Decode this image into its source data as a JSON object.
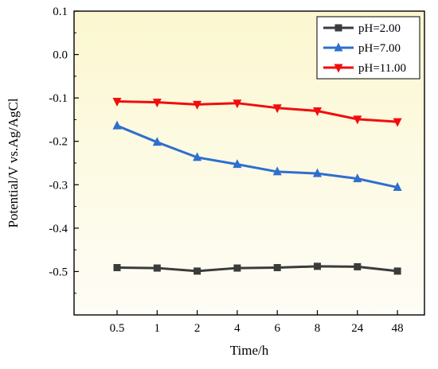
{
  "chart_data": {
    "type": "line",
    "title": "",
    "xlabel": "Time/h",
    "ylabel": "Potential/V vs.Ag/AgCl",
    "categories": [
      "0.5",
      "1",
      "2",
      "4",
      "6",
      "8",
      "24",
      "48"
    ],
    "ylim": [
      -0.6,
      0.1
    ],
    "yticks": [
      "0.1",
      "0.0",
      "-0.1",
      "-0.2",
      "-0.3",
      "-0.4",
      "-0.5"
    ],
    "yticks_values": [
      0.1,
      0.0,
      -0.1,
      -0.2,
      -0.3,
      -0.4,
      -0.5
    ],
    "grid": false,
    "legend_position": "top-right",
    "background": "gradient pale yellow",
    "series": [
      {
        "name": "pH=2.00",
        "color": "#3b3b3b",
        "marker": "square",
        "values": [
          -0.491,
          -0.492,
          -0.499,
          -0.492,
          -0.491,
          -0.488,
          -0.489,
          -0.499
        ]
      },
      {
        "name": "pH=7.00",
        "color": "#2f6fce",
        "marker": "triangle-up",
        "values": [
          -0.164,
          -0.202,
          -0.237,
          -0.253,
          -0.27,
          -0.274,
          -0.286,
          -0.306
        ]
      },
      {
        "name": "pH=11.00",
        "color": "#f20d0d",
        "marker": "triangle-down",
        "values": [
          -0.108,
          -0.11,
          -0.115,
          -0.112,
          -0.123,
          -0.13,
          -0.149,
          -0.155
        ]
      }
    ]
  }
}
